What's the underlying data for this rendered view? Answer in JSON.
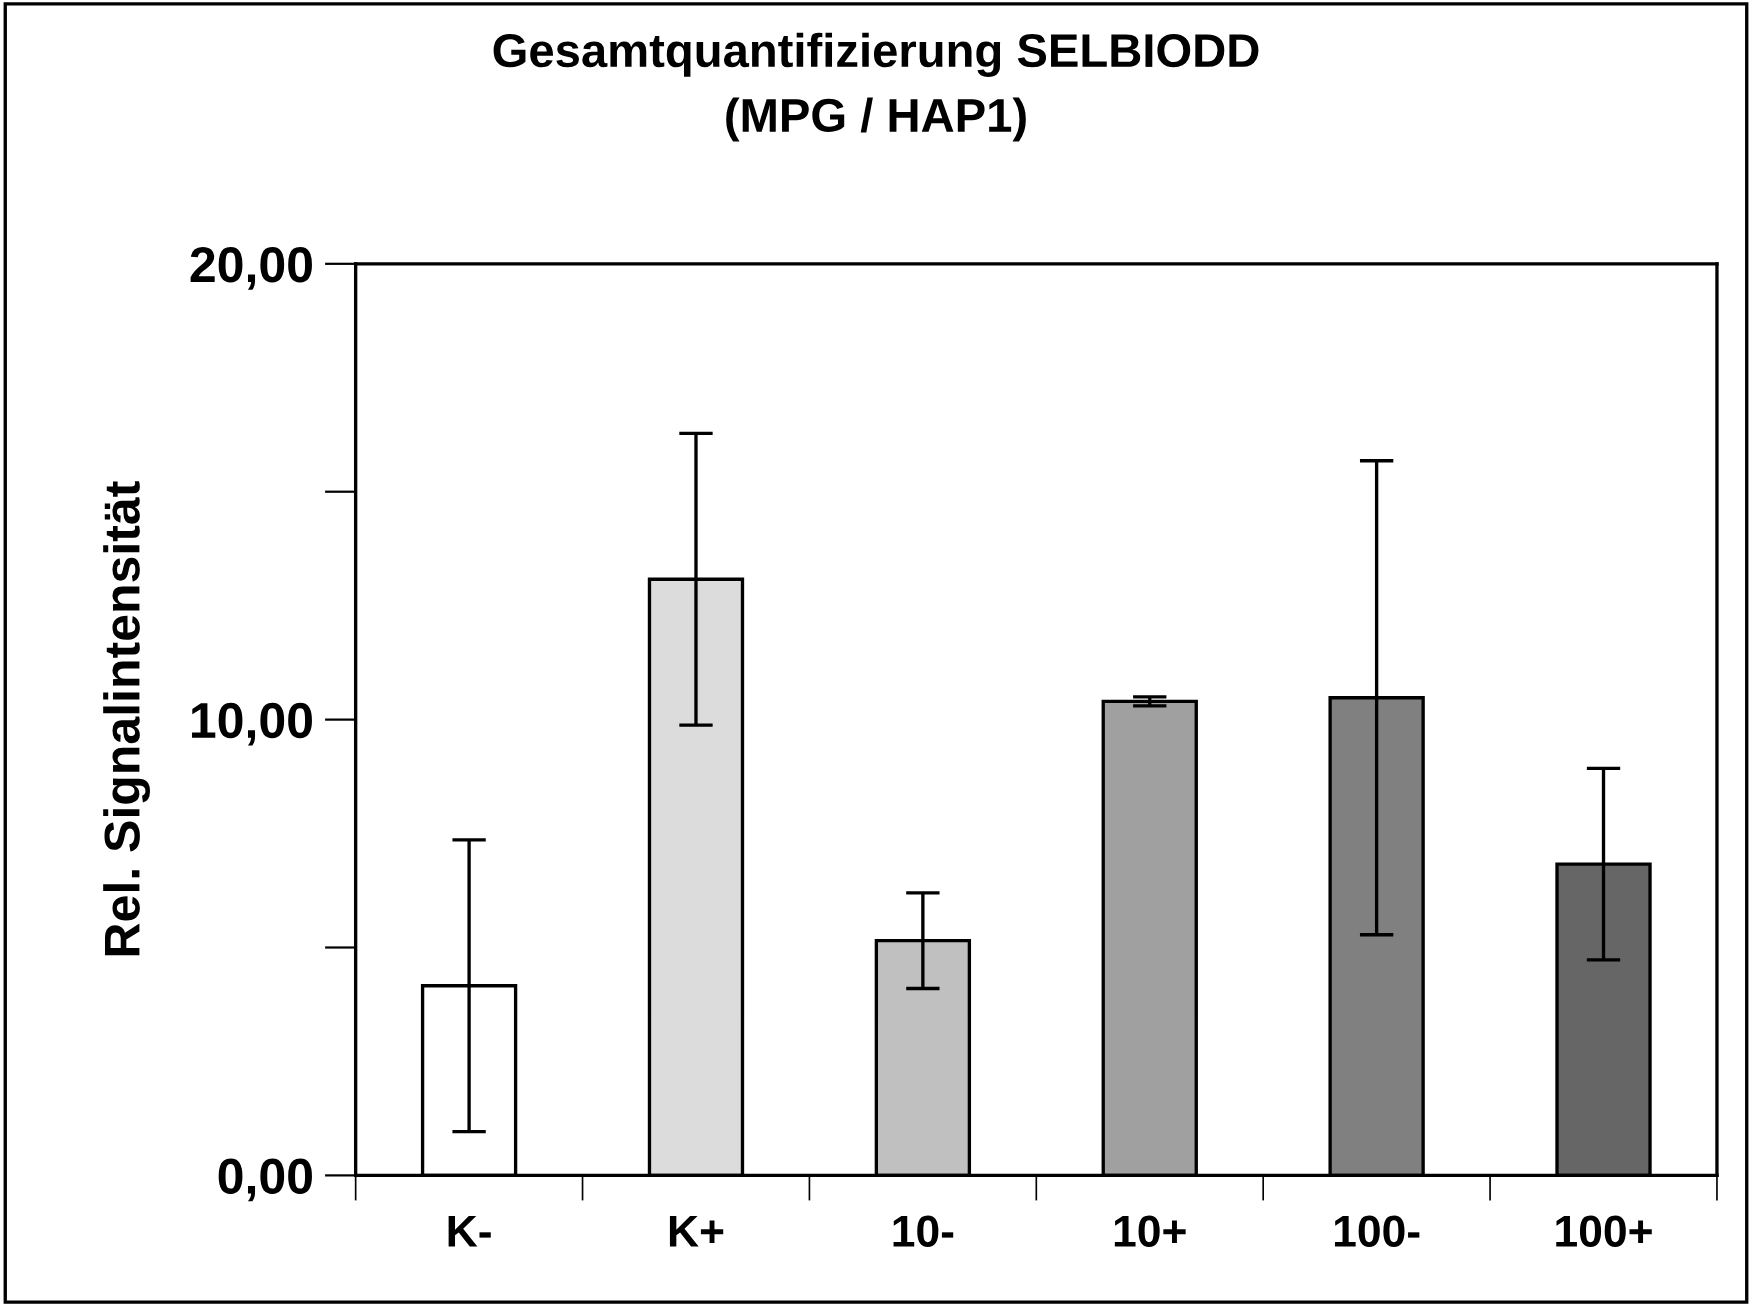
{
  "chart_data": {
    "type": "bar",
    "title": "Gesamtquantifizierung SELBIODD\n(MPG / HAP1)",
    "ylabel": "Rel. Signalintensität",
    "categories": [
      "K-",
      "K+",
      "10-",
      "10+",
      "100-",
      "100+"
    ],
    "values": [
      4.16,
      13.08,
      5.15,
      10.4,
      10.48,
      6.83
    ],
    "errors": [
      3.2,
      3.2,
      1.05,
      0.1,
      5.2,
      2.1
    ],
    "colors": [
      "#ffffff",
      "#dcdcdc",
      "#c0c0c0",
      "#a0a0a0",
      "#808080",
      "#666666"
    ],
    "ylim": [
      0,
      20
    ],
    "yticks": [
      {
        "value": 0,
        "label": "0,00"
      },
      {
        "value": 5,
        "label": null
      },
      {
        "value": 10,
        "label": "10,00"
      },
      {
        "value": 15,
        "label": null
      },
      {
        "value": 20,
        "label": "20,00"
      }
    ],
    "grid": false,
    "legend": false
  }
}
